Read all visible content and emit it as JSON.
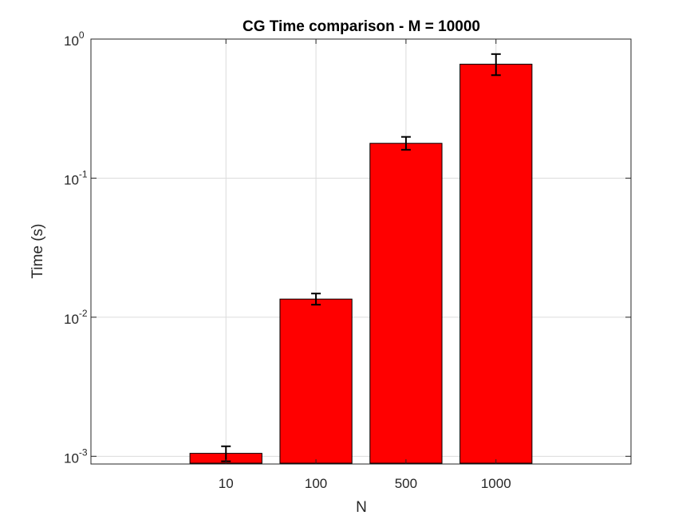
{
  "chart_data": {
    "type": "bar",
    "title": "CG Time comparison - M = 10000",
    "xlabel": "N",
    "ylabel": "Time (s)",
    "categories": [
      "10",
      "100",
      "500",
      "1000"
    ],
    "values": [
      0.00105,
      0.0135,
      0.178,
      0.66
    ],
    "errors": [
      {
        "low": 0.00092,
        "high": 0.00118
      },
      {
        "low": 0.0123,
        "high": 0.0148
      },
      {
        "low": 0.16,
        "high": 0.198
      },
      {
        "low": 0.55,
        "high": 0.78
      }
    ],
    "yscale": "log",
    "ylim": [
      0.00088,
      1
    ],
    "yticks": [
      {
        "base": "10",
        "exp": "-3",
        "value": 0.001
      },
      {
        "base": "10",
        "exp": "-2",
        "value": 0.01
      },
      {
        "base": "10",
        "exp": "-1",
        "value": 0.1
      },
      {
        "base": "10",
        "exp": "0",
        "value": 1
      }
    ],
    "grid": true,
    "bar_color": "#ff0000"
  }
}
